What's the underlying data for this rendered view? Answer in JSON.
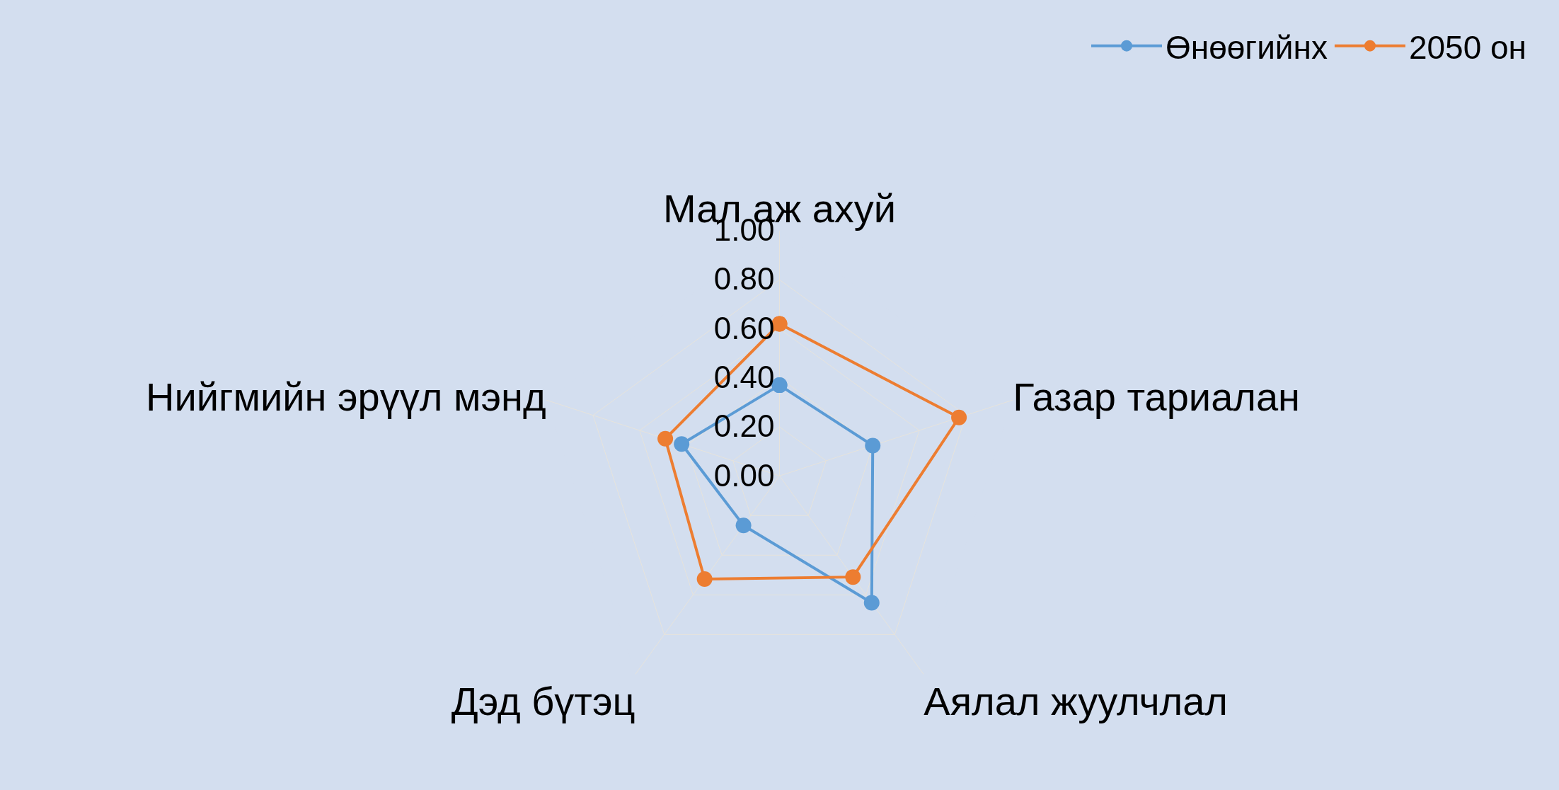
{
  "chart_data": {
    "type": "radar",
    "categories": [
      "Мал аж ахуй",
      "Газар тариалан",
      "Аялал жуулчлал",
      "Дэд бүтэц",
      "Нийгмийн эрүүл мэнд"
    ],
    "series": [
      {
        "name": "Өнөөгийнх",
        "color": "#5b9bd5",
        "values": [
          0.37,
          0.4,
          0.64,
          0.25,
          0.42
        ]
      },
      {
        "name": "2050 он",
        "color": "#ed7d31",
        "values": [
          0.62,
          0.77,
          0.51,
          0.52,
          0.49
        ]
      }
    ],
    "ylim": [
      0,
      1
    ],
    "yticks": [
      {
        "value": 0,
        "label": "0.00"
      },
      {
        "value": 0.2,
        "label": "0.20"
      },
      {
        "value": 0.4,
        "label": "0.40"
      },
      {
        "value": 0.6,
        "label": "0.60"
      },
      {
        "value": 0.8,
        "label": "0.80"
      },
      {
        "value": 1,
        "label": "1.00"
      }
    ],
    "grid": true,
    "legend": "top right",
    "marker": "circle",
    "line_style": "solid"
  }
}
